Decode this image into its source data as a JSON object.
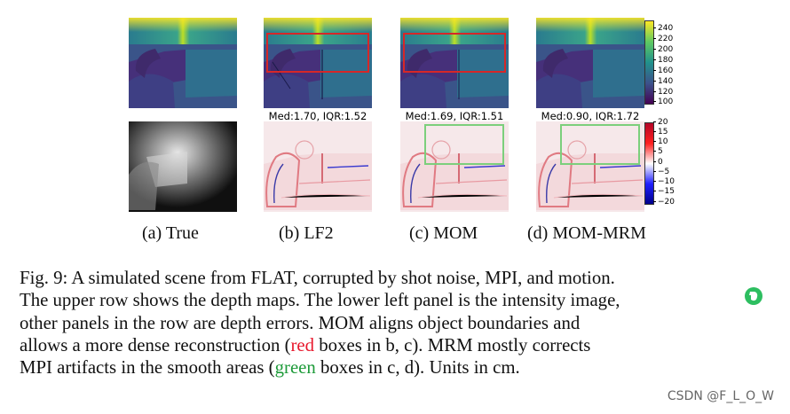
{
  "figure": {
    "stats": {
      "lf2": "Med:1.70, IQR:1.52",
      "mom": "Med:1.69, IQR:1.51",
      "mom_mrm": "Med:0.90, IQR:1.72"
    },
    "subcaptions": {
      "a": "(a) True",
      "b": "(b) LF2",
      "c": "(c) MOM",
      "d": "(d) MOM-MRM"
    },
    "colorbar_depth": [
      "240",
      "220",
      "200",
      "180",
      "160",
      "140",
      "120",
      "100"
    ],
    "colorbar_error": [
      "20",
      "15",
      "10",
      "5",
      "0",
      "−5",
      "−10",
      "−15",
      "−20"
    ],
    "colors": {
      "red_box": "#d62728",
      "green_box": "#7ccf7c"
    }
  },
  "caption": {
    "l1": "Fig. 9: A simulated scene from FLAT, corrupted by shot noise, MPI, and motion.",
    "l2": "The upper row shows the depth maps. The lower left panel is the intensity image,",
    "l3": "other panels in the row are depth errors. MOM aligns object boundaries and",
    "l4a": "allows a more dense reconstruction (",
    "l4red": "red",
    "l4b": " boxes in b, c). MRM mostly corrects",
    "l5a": "MPI artifacts in the smooth areas (",
    "l5green": "green",
    "l5b": " boxes in c, d). Units in cm."
  },
  "watermark": "CSDN @F_L_O_W"
}
